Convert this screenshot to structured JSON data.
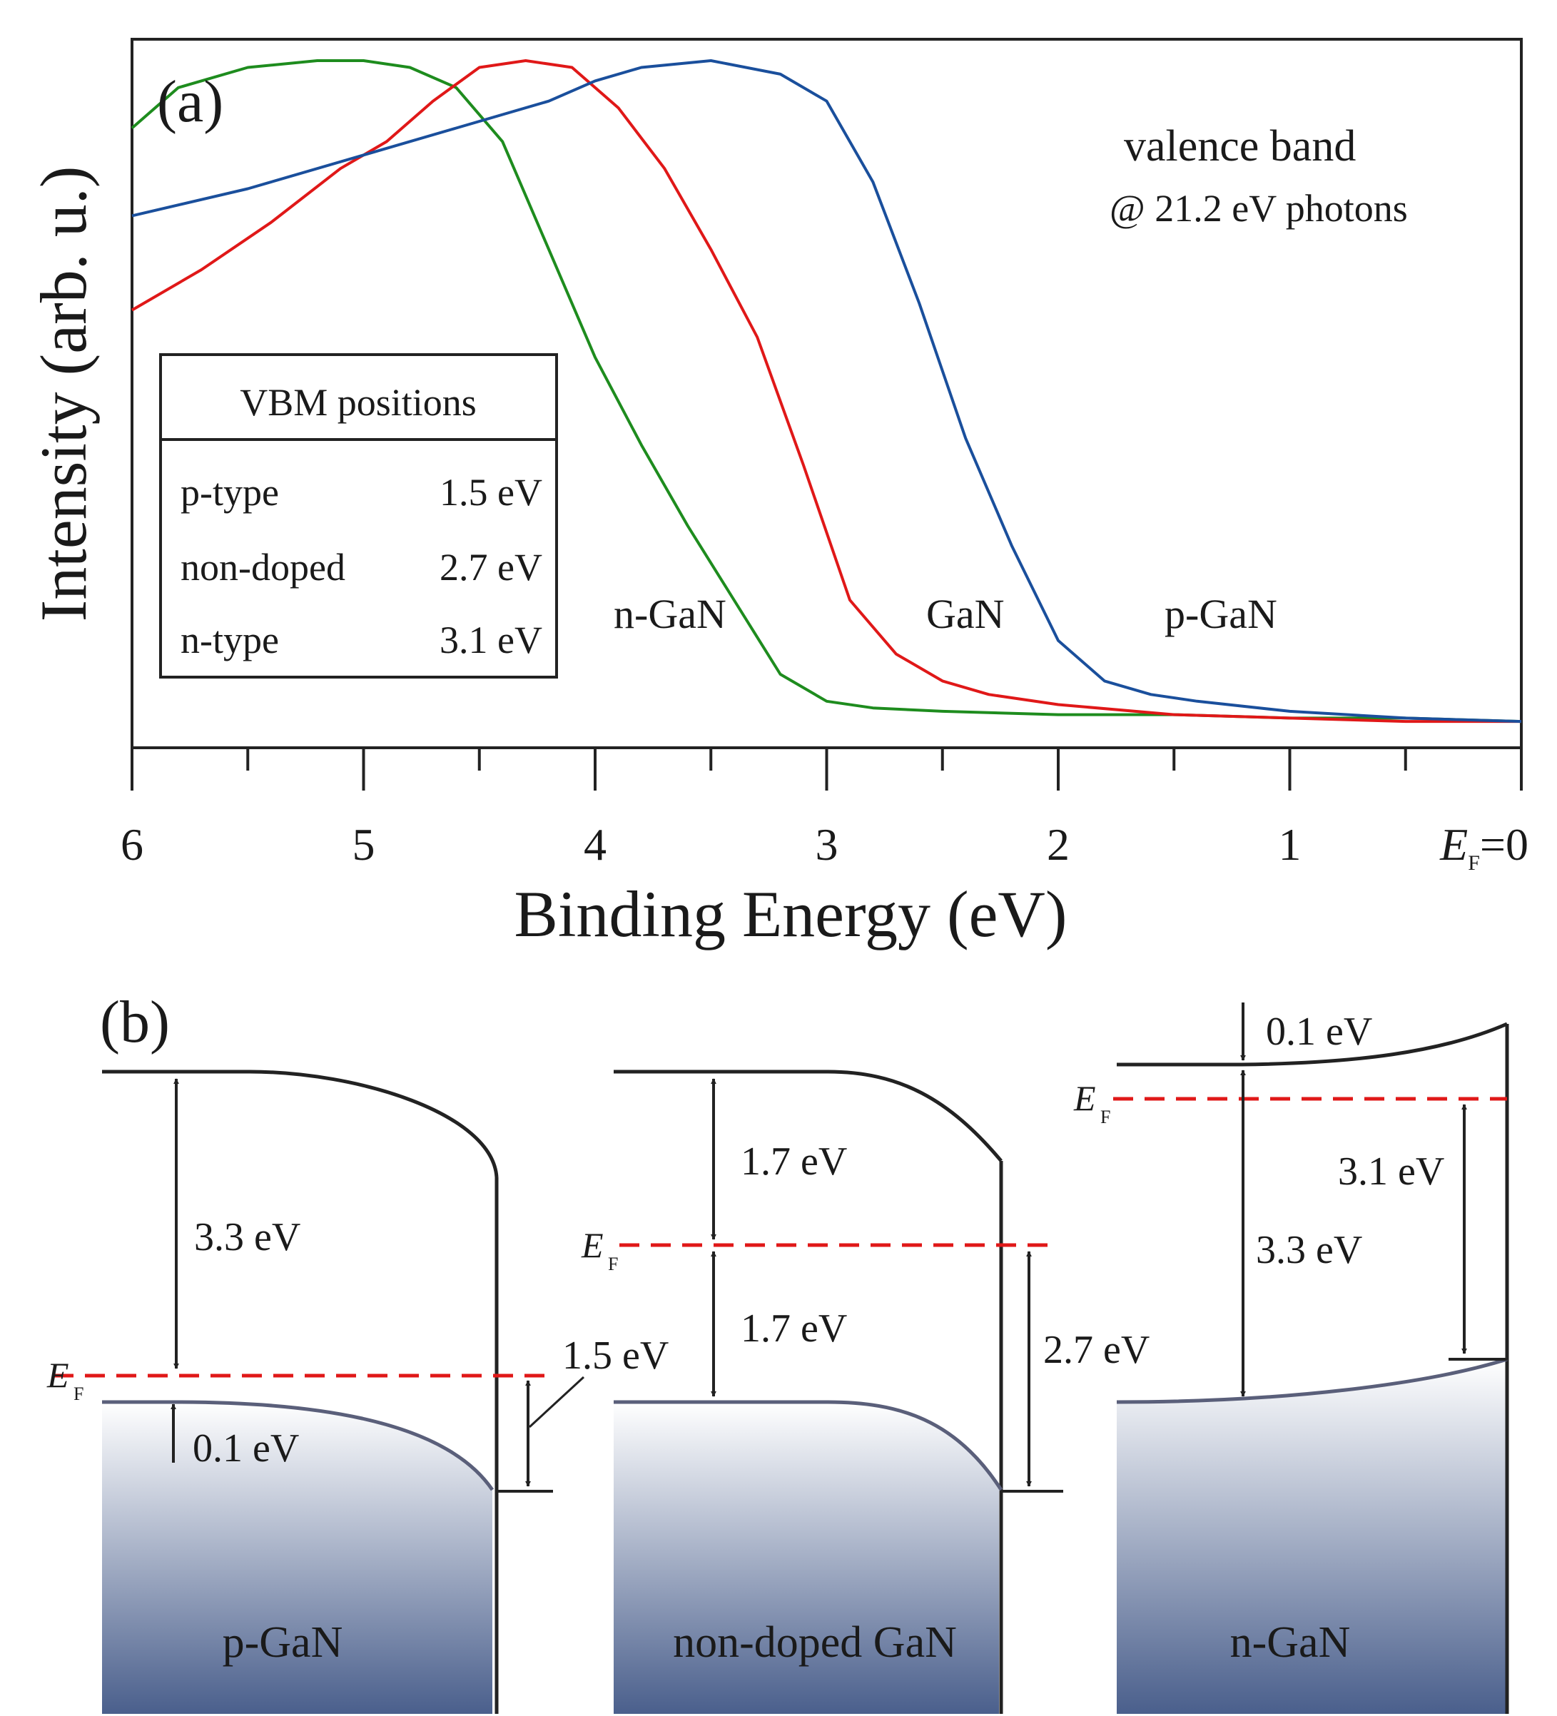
{
  "chart_data": [
    {
      "type": "line",
      "panel_label": "(a)",
      "xlabel": "Binding Energy (eV)",
      "ylabel": "Intensity (arb. u.)",
      "xlim": [
        6,
        0
      ],
      "x_ticks": [
        "6",
        "5",
        "4",
        "3",
        "2",
        "1"
      ],
      "x_tick_last_label": {
        "main": "E",
        "sub": "F",
        "suffix": "=0"
      },
      "annotation_lines": [
        "valence band",
        "@ 21.2 eV photons"
      ],
      "series": [
        {
          "name": "n-GaN",
          "color": "#1e8c1e",
          "x": [
            6.0,
            5.8,
            5.5,
            5.2,
            5.0,
            4.8,
            4.6,
            4.4,
            4.2,
            4.0,
            3.8,
            3.6,
            3.4,
            3.2,
            3.0,
            2.8,
            2.5,
            2.0,
            1.5,
            1.0,
            0.5,
            0.0
          ],
          "y": [
            0.9,
            0.96,
            0.99,
            1.0,
            1.0,
            0.99,
            0.96,
            0.88,
            0.72,
            0.56,
            0.43,
            0.31,
            0.2,
            0.09,
            0.05,
            0.04,
            0.035,
            0.03,
            0.03,
            0.025,
            0.025,
            0.02
          ]
        },
        {
          "name": "GaN",
          "color": "#e01818",
          "x": [
            6.0,
            5.7,
            5.4,
            5.1,
            4.9,
            4.7,
            4.5,
            4.3,
            4.1,
            3.9,
            3.7,
            3.5,
            3.3,
            3.1,
            2.9,
            2.7,
            2.5,
            2.3,
            2.0,
            1.5,
            1.0,
            0.5,
            0.0
          ],
          "y": [
            0.63,
            0.69,
            0.76,
            0.84,
            0.88,
            0.94,
            0.99,
            1.0,
            0.99,
            0.93,
            0.84,
            0.72,
            0.59,
            0.4,
            0.2,
            0.12,
            0.08,
            0.06,
            0.045,
            0.03,
            0.025,
            0.02,
            0.02
          ]
        },
        {
          "name": "p-GaN",
          "color": "#1a4f9c",
          "x": [
            6.0,
            5.5,
            5.0,
            4.6,
            4.2,
            4.0,
            3.8,
            3.5,
            3.2,
            3.0,
            2.8,
            2.6,
            2.4,
            2.2,
            2.0,
            1.8,
            1.6,
            1.4,
            1.0,
            0.5,
            0.0
          ],
          "y": [
            0.77,
            0.81,
            0.86,
            0.9,
            0.94,
            0.97,
            0.99,
            1.0,
            0.98,
            0.94,
            0.82,
            0.64,
            0.44,
            0.28,
            0.14,
            0.08,
            0.06,
            0.05,
            0.035,
            0.025,
            0.02
          ]
        }
      ],
      "curve_labels": [
        "n-GaN",
        "GaN",
        "p-GaN"
      ],
      "inset_table": {
        "header": "VBM positions",
        "rows": [
          {
            "label": "p-type",
            "value": "1.5 eV"
          },
          {
            "label": "non-doped",
            "value": "2.7 eV"
          },
          {
            "label": "n-type",
            "value": "3.1 eV"
          }
        ]
      }
    },
    {
      "type": "diagram",
      "panel_label": "(b)",
      "fermi_level": {
        "main": "E",
        "sub": "F"
      },
      "colors": {
        "band_edge": "#222222",
        "fermi": "#e01818",
        "valence": "#5a5f7a",
        "fill_top": "#ffffff",
        "fill_bottom": "#4a5f8c"
      },
      "panels": [
        {
          "name": "p-GaN",
          "label": "p-GaN",
          "gap": "3.3 eV",
          "bending": "0.1 eV",
          "vbm": "1.5 eV"
        },
        {
          "name": "non-doped GaN",
          "label": "non-doped GaN",
          "upper": "1.7 eV",
          "lower": "1.7 eV",
          "vbm": "2.7 eV"
        },
        {
          "name": "n-GaN",
          "label": "n-GaN",
          "bending": "0.1 eV",
          "gap": "3.3 eV",
          "vbm": "3.1 eV"
        }
      ]
    }
  ]
}
